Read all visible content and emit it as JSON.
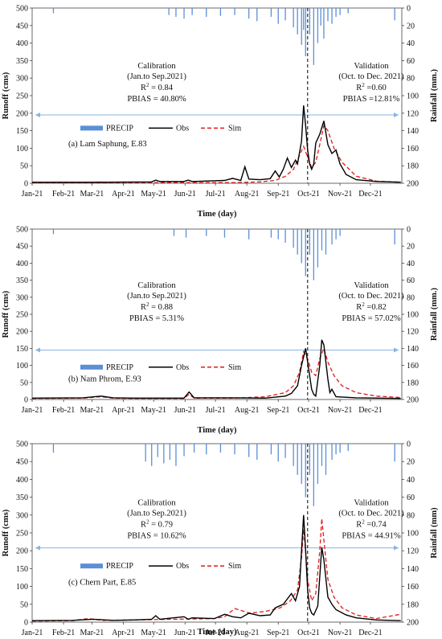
{
  "chart_data": [
    {
      "type": "line",
      "caption": "(a) Lam Saphung, E.83",
      "xlabel": "Time (day)",
      "ylabel": "Runoff (cms)",
      "y2label": "Rainfall (mm.)",
      "ylim": [
        0,
        500
      ],
      "yticks": [
        0,
        50,
        100,
        150,
        200,
        250,
        300,
        350,
        400,
        450,
        500
      ],
      "y2lim": [
        200,
        0
      ],
      "y2ticks": [
        0,
        20,
        40,
        60,
        80,
        100,
        120,
        140,
        160,
        180,
        200
      ],
      "months": [
        "Jan-21",
        "Feb-21",
        "Mar-21",
        "Apr-21",
        "May-21",
        "Jun-21",
        "Jul-21",
        "Aug-21",
        "Sep-21",
        "Oct-21",
        "Nov-21",
        "Dec-21"
      ],
      "split_day": 272,
      "split_label": "Oct-21",
      "hline": 195,
      "legend": {
        "precip": "PRECIP",
        "obs": "Obs",
        "sim": "Sim"
      },
      "calibration": {
        "title": "Calibration",
        "period": "(Jan.to Sep.2021)",
        "r2_label": "R",
        "r2_value": " = 0.84",
        "pbias": "PBIAS = 40.80%"
      },
      "validation": {
        "title": "Validation",
        "period": "(Oct. to Dec. 2021)",
        "r2_label": "R",
        "r2_value": " =0.60",
        "pbias": "PBIAS =12.81%"
      },
      "series": [
        {
          "name": "PRECIP",
          "axis": "right",
          "style": "bar",
          "x": [
            21,
            135,
            142,
            150,
            158,
            172,
            186,
            200,
            214,
            222,
            236,
            243,
            250,
            258,
            262,
            266,
            268,
            270,
            274,
            278,
            282,
            285,
            288,
            292,
            296,
            300,
            304,
            312,
            358
          ],
          "values": [
            6,
            8,
            10,
            12,
            8,
            10,
            9,
            8,
            12,
            15,
            10,
            18,
            14,
            22,
            30,
            42,
            25,
            55,
            30,
            65,
            40,
            20,
            35,
            15,
            18,
            10,
            8,
            6,
            14
          ]
        },
        {
          "name": "Obs",
          "axis": "left",
          "style": "line",
          "x": [
            0,
            60,
            118,
            122,
            126,
            150,
            154,
            158,
            190,
            198,
            206,
            210,
            214,
            225,
            235,
            240,
            244,
            248,
            252,
            256,
            260,
            262,
            266,
            268,
            270,
            272,
            274,
            276,
            278,
            280,
            284,
            288,
            292,
            296,
            300,
            304,
            310,
            320,
            340,
            364
          ],
          "values": [
            3,
            3,
            4,
            9,
            5,
            5,
            9,
            5,
            8,
            14,
            8,
            47,
            12,
            10,
            13,
            35,
            18,
            40,
            72,
            45,
            66,
            55,
            120,
            222,
            165,
            95,
            55,
            40,
            55,
            115,
            140,
            178,
            110,
            85,
            95,
            55,
            25,
            10,
            5,
            3
          ]
        },
        {
          "name": "Sim",
          "axis": "left",
          "style": "dashed",
          "x": [
            0,
            200,
            225,
            240,
            250,
            258,
            264,
            268,
            272,
            276,
            280,
            284,
            288,
            292,
            298,
            306,
            320,
            340,
            364
          ],
          "values": [
            2,
            2,
            4,
            8,
            20,
            40,
            80,
            105,
            75,
            45,
            60,
            110,
            165,
            150,
            100,
            60,
            20,
            6,
            3
          ]
        }
      ]
    },
    {
      "type": "line",
      "caption": "(b) Nam Phrom, E.93",
      "xlabel": "Time (day)",
      "ylabel": "Runoff (cms)",
      "y2label": "Rainfall (mm.)",
      "ylim": [
        0,
        500
      ],
      "yticks": [
        0,
        50,
        100,
        150,
        200,
        250,
        300,
        350,
        400,
        450,
        500
      ],
      "y2lim": [
        200,
        0
      ],
      "y2ticks": [
        0,
        20,
        40,
        60,
        80,
        100,
        120,
        140,
        160,
        180,
        200
      ],
      "months": [
        "Jan-21",
        "Feb-21",
        "Mar-21",
        "Apr-21",
        "May-21",
        "Jun-21",
        "Jul-21",
        "Aug-21",
        "Sep-21",
        "Oct-21",
        "Nov-21",
        "Dec-21"
      ],
      "split_day": 272,
      "split_label": "Oct-21",
      "hline": 145,
      "legend": {
        "precip": "PRECIP",
        "obs": "Obs",
        "sim": "Sim"
      },
      "calibration": {
        "title": "Calibration",
        "period": "(Jan.to Sep.2021)",
        "r2_label": "R",
        "r2_value": " = 0.88",
        "pbias": "PBIAS = 5.31%"
      },
      "validation": {
        "title": "Validation",
        "period": "(Oct. to Dec. 2021)",
        "r2_label": "R",
        "r2_value": " =0.82",
        "pbias": "PBIAS = 57.02%"
      },
      "series": [
        {
          "name": "PRECIP",
          "axis": "right",
          "style": "bar",
          "x": [
            21,
            140,
            152,
            172,
            190,
            214,
            236,
            243,
            250,
            258,
            262,
            266,
            270,
            274,
            278,
            282,
            286,
            290,
            296,
            300,
            304,
            358
          ],
          "values": [
            6,
            8,
            10,
            8,
            10,
            12,
            10,
            12,
            16,
            22,
            30,
            40,
            55,
            30,
            60,
            45,
            25,
            30,
            18,
            12,
            8,
            18
          ]
        },
        {
          "name": "Obs",
          "axis": "left",
          "style": "line",
          "x": [
            0,
            50,
            68,
            80,
            100,
            150,
            155,
            160,
            200,
            230,
            250,
            256,
            262,
            266,
            268,
            270,
            272,
            274,
            276,
            278,
            280,
            284,
            286,
            288,
            292,
            294,
            296,
            300,
            320,
            364
          ],
          "values": [
            4,
            5,
            10,
            5,
            4,
            4,
            22,
            5,
            5,
            4,
            10,
            18,
            40,
            100,
            125,
            150,
            110,
            70,
            30,
            15,
            10,
            100,
            175,
            160,
            60,
            20,
            30,
            8,
            5,
            3
          ]
        },
        {
          "name": "Sim",
          "axis": "left",
          "style": "dashed",
          "x": [
            0,
            50,
            68,
            80,
            100,
            150,
            155,
            160,
            200,
            230,
            250,
            258,
            264,
            268,
            272,
            276,
            280,
            284,
            288,
            292,
            298,
            306,
            320,
            340,
            364
          ],
          "values": [
            3,
            4,
            8,
            4,
            3,
            3,
            15,
            4,
            4,
            8,
            20,
            40,
            80,
            140,
            120,
            80,
            70,
            120,
            150,
            110,
            70,
            40,
            20,
            10,
            6
          ]
        }
      ]
    },
    {
      "type": "line",
      "caption": "(c) Chern Part, E.85",
      "xlabel": "Time (day)",
      "ylabel": "Runoff (cms)",
      "y2label": "Rainfall (mm)",
      "ylim": [
        0,
        500
      ],
      "yticks": [
        0,
        50,
        100,
        150,
        200,
        250,
        300,
        350,
        400,
        450,
        500
      ],
      "y2lim": [
        200,
        0
      ],
      "y2ticks": [
        0,
        20,
        40,
        60,
        80,
        100,
        120,
        140,
        160,
        180,
        200
      ],
      "months": [
        "Jan-21",
        "Feb-21",
        "Mar-21",
        "Apr-21",
        "May-21",
        "Jun-21",
        "Jul-21",
        "Aug-21",
        "Sep-21",
        "Oct-21",
        "Nov-21",
        "Dec-21"
      ],
      "split_day": 272,
      "split_label": "Oct-21",
      "hline": 208,
      "legend": {
        "precip": "PRECIP",
        "obs": "Obs",
        "sim": "Sim"
      },
      "calibration": {
        "title": "Calibration",
        "period": "(Jan.to Sep.2021)",
        "r2_label": "R",
        "r2_value": " = 0.79",
        "pbias": "PBIAS = 10.62%"
      },
      "validation": {
        "title": "Validation",
        "period": "(Oct. to Dec. 2021)",
        "r2_label": "R",
        "r2_value": " =0.74",
        "pbias": "PBIAS = 44.91%"
      },
      "series": [
        {
          "name": "PRECIP",
          "axis": "right",
          "style": "bar",
          "x": [
            21,
            112,
            118,
            124,
            130,
            136,
            142,
            150,
            160,
            172,
            186,
            200,
            214,
            222,
            236,
            243,
            250,
            258,
            262,
            266,
            270,
            274,
            278,
            282,
            286,
            290,
            296,
            300,
            304,
            312,
            358
          ],
          "values": [
            10,
            20,
            25,
            15,
            22,
            18,
            25,
            14,
            10,
            12,
            10,
            12,
            15,
            18,
            12,
            20,
            16,
            25,
            35,
            45,
            60,
            35,
            70,
            45,
            25,
            35,
            18,
            12,
            10,
            8,
            20
          ]
        },
        {
          "name": "Obs",
          "axis": "left",
          "style": "line",
          "x": [
            0,
            40,
            60,
            80,
            100,
            118,
            122,
            126,
            150,
            154,
            158,
            180,
            190,
            198,
            206,
            214,
            225,
            235,
            240,
            248,
            256,
            260,
            264,
            266,
            268,
            270,
            272,
            274,
            276,
            278,
            282,
            286,
            288,
            292,
            296,
            300,
            310,
            320,
            340,
            364
          ],
          "values": [
            4,
            5,
            8,
            5,
            6,
            8,
            18,
            8,
            15,
            8,
            12,
            10,
            22,
            15,
            12,
            25,
            18,
            20,
            40,
            50,
            80,
            60,
            100,
            200,
            300,
            200,
            90,
            40,
            25,
            20,
            45,
            210,
            175,
            70,
            50,
            35,
            20,
            12,
            6,
            4
          ]
        },
        {
          "name": "Sim",
          "axis": "left",
          "style": "dashed",
          "x": [
            0,
            40,
            55,
            70,
            100,
            180,
            190,
            200,
            215,
            230,
            245,
            255,
            262,
            266,
            268,
            270,
            272,
            276,
            280,
            284,
            286,
            288,
            292,
            298,
            306,
            320,
            340,
            364
          ],
          "values": [
            3,
            4,
            10,
            5,
            6,
            10,
            15,
            38,
            25,
            30,
            40,
            60,
            90,
            180,
            260,
            200,
            120,
            60,
            80,
            200,
            290,
            230,
            120,
            70,
            40,
            20,
            10,
            22
          ]
        }
      ]
    }
  ]
}
